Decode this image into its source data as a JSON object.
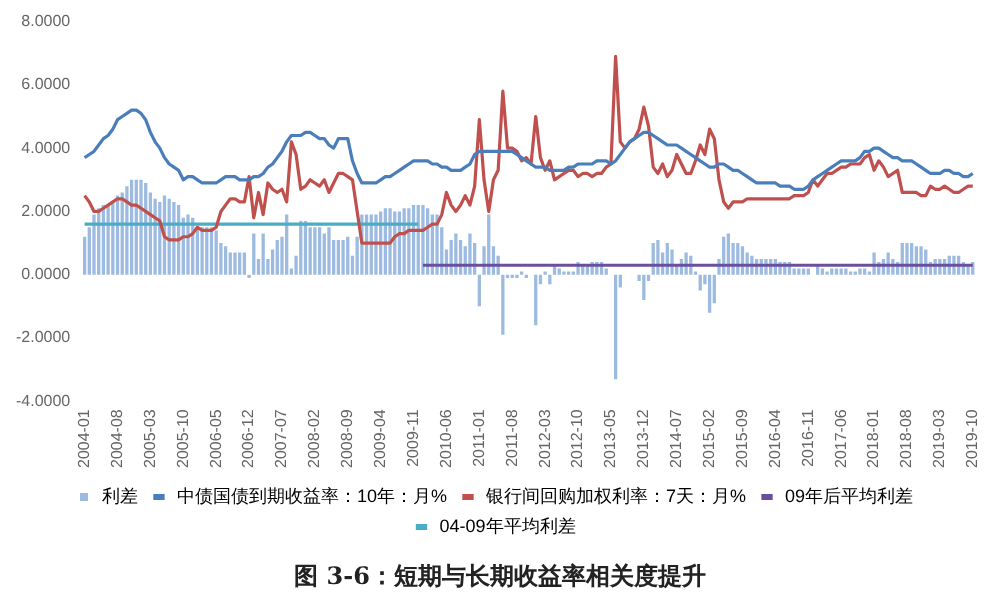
{
  "chart_data": {
    "type": "bar",
    "title": "图 3-6：短期与长期收益率相关度提升",
    "categories": [
      "2004-01",
      null,
      null,
      null,
      null,
      null,
      null,
      "2004-08",
      null,
      null,
      null,
      null,
      null,
      null,
      "2005-03",
      null,
      null,
      null,
      null,
      null,
      null,
      "2005-10",
      null,
      null,
      null,
      null,
      null,
      null,
      "2006-05",
      null,
      null,
      null,
      null,
      null,
      null,
      "2006-12",
      null,
      null,
      null,
      null,
      null,
      null,
      "2007-07",
      null,
      null,
      null,
      null,
      null,
      null,
      "2008-02",
      null,
      null,
      null,
      null,
      null,
      null,
      "2008-09",
      null,
      null,
      null,
      null,
      null,
      null,
      "2009-04",
      null,
      null,
      null,
      null,
      null,
      null,
      "2009-11",
      null,
      null,
      null,
      null,
      null,
      null,
      "2010-06",
      null,
      null,
      null,
      null,
      null,
      null,
      "2011-01",
      null,
      null,
      null,
      null,
      null,
      null,
      "2011-08",
      null,
      null,
      null,
      null,
      null,
      null,
      "2012-03",
      null,
      null,
      null,
      null,
      null,
      null,
      "2012-10",
      null,
      null,
      null,
      null,
      null,
      null,
      "2013-05",
      null,
      null,
      null,
      null,
      null,
      null,
      "2013-12",
      null,
      null,
      null,
      null,
      null,
      null,
      "2014-07",
      null,
      null,
      null,
      null,
      null,
      null,
      "2015-02",
      null,
      null,
      null,
      null,
      null,
      null,
      "2015-09",
      null,
      null,
      null,
      null,
      null,
      null,
      "2016-04",
      null,
      null,
      null,
      null,
      null,
      null,
      "2016-11",
      null,
      null,
      null,
      null,
      null,
      null,
      "2017-06",
      null,
      null,
      null,
      null,
      null,
      null,
      "2018-01",
      null,
      null,
      null,
      null,
      null,
      null,
      "2018-08",
      null,
      null,
      null,
      null,
      null,
      null,
      "2019-03",
      null,
      null,
      null,
      null,
      null,
      null,
      "2019-10"
    ],
    "series": [
      {
        "name": "利差",
        "type": "bar",
        "color": "#9dbbe0",
        "values": [
          1.2,
          1.5,
          1.9,
          2.1,
          2.2,
          2.2,
          2.3,
          2.5,
          2.6,
          2.8,
          3.0,
          3.0,
          3.0,
          2.9,
          2.6,
          2.4,
          2.3,
          2.5,
          2.4,
          2.3,
          2.2,
          1.8,
          1.9,
          1.8,
          1.5,
          1.5,
          1.5,
          1.5,
          1.4,
          1.0,
          0.9,
          0.7,
          0.7,
          0.7,
          0.7,
          -0.1,
          1.3,
          0.5,
          1.3,
          0.5,
          0.8,
          1.1,
          1.2,
          1.9,
          0.2,
          0.6,
          1.7,
          1.7,
          1.5,
          1.5,
          1.5,
          1.3,
          1.5,
          1.1,
          1.1,
          1.1,
          1.2,
          0.6,
          1.2,
          1.9,
          1.9,
          1.9,
          1.9,
          2.0,
          2.1,
          2.1,
          2.0,
          2.0,
          2.1,
          2.1,
          2.2,
          2.2,
          2.2,
          2.1,
          1.9,
          1.9,
          1.5,
          0.8,
          1.1,
          1.3,
          1.1,
          0.9,
          1.3,
          1.0,
          -1.0,
          0.9,
          1.9,
          0.9,
          0.6,
          -1.9,
          -0.1,
          -0.1,
          -0.1,
          0.1,
          -0.1,
          0.0,
          -1.6,
          -0.3,
          0.1,
          -0.3,
          0.3,
          0.2,
          0.1,
          0.1,
          0.1,
          0.4,
          0.3,
          0.3,
          0.4,
          0.4,
          0.4,
          0.2,
          0.0,
          -3.3,
          -0.4,
          0.0,
          0.0,
          0.0,
          -0.2,
          -0.8,
          -0.2,
          1.0,
          1.1,
          0.7,
          1.0,
          0.8,
          0.3,
          0.5,
          0.7,
          0.6,
          0.1,
          -0.5,
          -0.3,
          -1.2,
          -0.9,
          0.5,
          1.2,
          1.3,
          1.0,
          1.0,
          0.9,
          0.7,
          0.6,
          0.5,
          0.5,
          0.5,
          0.5,
          0.5,
          0.4,
          0.4,
          0.4,
          0.2,
          0.2,
          0.2,
          0.2,
          0.0,
          0.3,
          0.2,
          0.1,
          0.2,
          0.2,
          0.2,
          0.2,
          0.1,
          0.1,
          0.2,
          0.2,
          0.1,
          0.7,
          0.4,
          0.5,
          0.7,
          0.5,
          0.4,
          1.0,
          1.0,
          1.0,
          0.9,
          0.9,
          0.8,
          0.4,
          0.5,
          0.5,
          0.5,
          0.6,
          0.6,
          0.6,
          0.4,
          0.3,
          0.4
        ]
      },
      {
        "name": "中债国债到期收益率：10年：月%",
        "type": "line",
        "color": "#4a7ebb",
        "values": [
          3.7,
          3.8,
          3.9,
          4.1,
          4.3,
          4.4,
          4.6,
          4.9,
          5.0,
          5.1,
          5.2,
          5.2,
          5.1,
          4.9,
          4.5,
          4.2,
          4.0,
          3.7,
          3.5,
          3.4,
          3.3,
          3.0,
          3.1,
          3.1,
          3.0,
          2.9,
          2.9,
          2.9,
          2.9,
          3.0,
          3.1,
          3.1,
          3.1,
          3.0,
          3.0,
          3.0,
          3.1,
          3.1,
          3.2,
          3.4,
          3.5,
          3.7,
          3.9,
          4.2,
          4.4,
          4.4,
          4.4,
          4.5,
          4.5,
          4.4,
          4.3,
          4.3,
          4.1,
          4.0,
          4.3,
          4.3,
          4.3,
          3.6,
          3.2,
          2.9,
          2.9,
          2.9,
          2.9,
          3.0,
          3.1,
          3.1,
          3.2,
          3.3,
          3.4,
          3.5,
          3.6,
          3.6,
          3.6,
          3.6,
          3.5,
          3.5,
          3.4,
          3.4,
          3.3,
          3.3,
          3.3,
          3.4,
          3.5,
          3.8,
          3.9,
          3.9,
          3.9,
          3.9,
          3.9,
          3.9,
          3.9,
          3.9,
          3.8,
          3.7,
          3.6,
          3.5,
          3.4,
          3.4,
          3.4,
          3.3,
          3.3,
          3.3,
          3.3,
          3.4,
          3.4,
          3.5,
          3.5,
          3.5,
          3.5,
          3.6,
          3.6,
          3.6,
          3.5,
          3.6,
          3.8,
          4.0,
          4.2,
          4.3,
          4.4,
          4.5,
          4.5,
          4.4,
          4.3,
          4.2,
          4.1,
          4.1,
          4.1,
          4.0,
          3.9,
          3.8,
          3.7,
          3.6,
          3.5,
          3.4,
          3.4,
          3.5,
          3.5,
          3.4,
          3.3,
          3.3,
          3.2,
          3.1,
          3.0,
          2.9,
          2.9,
          2.9,
          2.9,
          2.9,
          2.8,
          2.8,
          2.8,
          2.7,
          2.7,
          2.7,
          2.8,
          3.0,
          3.1,
          3.2,
          3.3,
          3.4,
          3.5,
          3.6,
          3.6,
          3.6,
          3.6,
          3.7,
          3.9,
          3.9,
          4.0,
          4.0,
          3.9,
          3.8,
          3.7,
          3.7,
          3.6,
          3.6,
          3.6,
          3.5,
          3.4,
          3.3,
          3.2,
          3.2,
          3.2,
          3.3,
          3.3,
          3.2,
          3.2,
          3.1,
          3.1,
          3.2
        ]
      },
      {
        "name": "银行间回购加权利率：7天：月%",
        "type": "line",
        "color": "#c0504d",
        "values": [
          2.5,
          2.3,
          2.0,
          2.0,
          2.1,
          2.2,
          2.3,
          2.4,
          2.4,
          2.3,
          2.2,
          2.2,
          2.1,
          2.0,
          1.9,
          1.8,
          1.7,
          1.2,
          1.1,
          1.1,
          1.1,
          1.2,
          1.2,
          1.3,
          1.5,
          1.4,
          1.4,
          1.4,
          1.5,
          2.0,
          2.2,
          2.4,
          2.4,
          2.3,
          2.3,
          3.1,
          1.8,
          2.6,
          1.9,
          2.9,
          2.7,
          2.6,
          2.7,
          2.3,
          4.2,
          3.8,
          2.7,
          2.8,
          3.0,
          2.9,
          2.8,
          3.0,
          2.6,
          2.9,
          3.2,
          3.2,
          3.1,
          3.0,
          2.0,
          1.0,
          1.0,
          1.0,
          1.0,
          1.0,
          1.0,
          1.0,
          1.2,
          1.3,
          1.3,
          1.4,
          1.4,
          1.4,
          1.4,
          1.5,
          1.6,
          1.6,
          1.9,
          2.6,
          2.2,
          2.0,
          2.2,
          2.5,
          2.2,
          2.8,
          4.9,
          3.0,
          2.0,
          3.0,
          3.3,
          5.8,
          4.0,
          4.0,
          3.9,
          3.6,
          3.7,
          3.5,
          5.0,
          3.7,
          3.3,
          3.6,
          3.0,
          3.1,
          3.2,
          3.3,
          3.3,
          3.1,
          3.2,
          3.2,
          3.1,
          3.2,
          3.2,
          3.4,
          3.5,
          6.9,
          4.2,
          4.0,
          4.2,
          4.3,
          4.6,
          5.3,
          4.7,
          3.4,
          3.2,
          3.5,
          3.1,
          3.3,
          3.8,
          3.5,
          3.2,
          3.2,
          3.6,
          4.1,
          3.8,
          4.6,
          4.3,
          3.0,
          2.3,
          2.1,
          2.3,
          2.3,
          2.3,
          2.4,
          2.4,
          2.4,
          2.4,
          2.4,
          2.4,
          2.4,
          2.4,
          2.4,
          2.4,
          2.5,
          2.5,
          2.5,
          2.6,
          3.0,
          2.8,
          3.0,
          3.2,
          3.2,
          3.3,
          3.4,
          3.4,
          3.5,
          3.5,
          3.5,
          3.7,
          3.8,
          3.3,
          3.6,
          3.4,
          3.1,
          3.2,
          3.3,
          2.6,
          2.6,
          2.6,
          2.6,
          2.5,
          2.5,
          2.8,
          2.7,
          2.7,
          2.8,
          2.7,
          2.6,
          2.6,
          2.7,
          2.8,
          2.8
        ]
      },
      {
        "name": "09年后平均利差",
        "type": "line",
        "color": "#6a4f9e",
        "values": [
          null,
          null,
          null,
          null,
          null,
          null,
          null,
          null,
          null,
          null,
          null,
          null,
          null,
          null,
          null,
          null,
          null,
          null,
          null,
          null,
          null,
          null,
          null,
          null,
          null,
          null,
          null,
          null,
          null,
          null,
          null,
          null,
          null,
          null,
          null,
          null,
          null,
          null,
          null,
          null,
          null,
          null,
          null,
          null,
          null,
          null,
          null,
          null,
          null,
          null,
          null,
          null,
          null,
          null,
          null,
          null,
          null,
          null,
          null,
          null,
          null,
          null,
          null,
          null,
          null,
          null,
          null,
          null,
          null,
          null,
          null,
          null,
          0.3,
          0.3,
          0.3,
          0.3,
          0.3,
          0.3,
          0.3,
          0.3,
          0.3,
          0.3,
          0.3,
          0.3,
          0.3,
          0.3,
          0.3,
          0.3,
          0.3,
          0.3,
          0.3,
          0.3,
          0.3,
          0.3,
          0.3,
          0.3,
          0.3,
          0.3,
          0.3,
          0.3,
          0.3,
          0.3,
          0.3,
          0.3,
          0.3,
          0.3,
          0.3,
          0.3,
          0.3,
          0.3,
          0.3,
          0.3,
          0.3,
          0.3,
          0.3,
          0.3,
          0.3,
          0.3,
          0.3,
          0.3,
          0.3,
          0.3,
          0.3,
          0.3,
          0.3,
          0.3,
          0.3,
          0.3,
          0.3,
          0.3,
          0.3,
          0.3,
          0.3,
          0.3,
          0.3,
          0.3,
          0.3,
          0.3,
          0.3,
          0.3,
          0.3,
          0.3,
          0.3,
          0.3,
          0.3,
          0.3,
          0.3,
          0.3,
          0.3,
          0.3,
          0.3,
          0.3,
          0.3,
          0.3,
          0.3,
          0.3,
          0.3,
          0.3,
          0.3,
          0.3,
          0.3,
          0.3,
          0.3,
          0.3,
          0.3,
          0.3,
          0.3,
          0.3,
          0.3,
          0.3,
          0.3,
          0.3,
          0.3,
          0.3,
          0.3,
          0.3,
          0.3,
          0.3,
          0.3,
          0.3,
          0.3,
          0.3,
          0.3,
          0.3,
          0.3,
          0.3,
          0.3,
          0.3,
          0.3,
          0.3
        ]
      },
      {
        "name": "04-09年平均利差",
        "type": "line",
        "color": "#4bacc6",
        "values": [
          1.6,
          1.6,
          1.6,
          1.6,
          1.6,
          1.6,
          1.6,
          1.6,
          1.6,
          1.6,
          1.6,
          1.6,
          1.6,
          1.6,
          1.6,
          1.6,
          1.6,
          1.6,
          1.6,
          1.6,
          1.6,
          1.6,
          1.6,
          1.6,
          1.6,
          1.6,
          1.6,
          1.6,
          1.6,
          1.6,
          1.6,
          1.6,
          1.6,
          1.6,
          1.6,
          1.6,
          1.6,
          1.6,
          1.6,
          1.6,
          1.6,
          1.6,
          1.6,
          1.6,
          1.6,
          1.6,
          1.6,
          1.6,
          1.6,
          1.6,
          1.6,
          1.6,
          1.6,
          1.6,
          1.6,
          1.6,
          1.6,
          1.6,
          1.6,
          1.6,
          1.6,
          1.6,
          1.6,
          1.6,
          1.6,
          1.6,
          1.6,
          1.6,
          1.6,
          1.6,
          1.6,
          1.6,
          null,
          null,
          null,
          null,
          null,
          null,
          null,
          null,
          null,
          null,
          null,
          null,
          null,
          null,
          null,
          null,
          null,
          null,
          null,
          null,
          null,
          null,
          null,
          null,
          null,
          null,
          null,
          null,
          null,
          null,
          null,
          null,
          null,
          null,
          null,
          null,
          null,
          null,
          null,
          null,
          null,
          null,
          null,
          null,
          null,
          null,
          null,
          null,
          null,
          null,
          null,
          null,
          null,
          null,
          null,
          null,
          null,
          null,
          null,
          null,
          null,
          null,
          null,
          null,
          null,
          null,
          null,
          null,
          null,
          null,
          null,
          null,
          null,
          null,
          null,
          null,
          null,
          null,
          null,
          null,
          null,
          null,
          null,
          null,
          null,
          null,
          null,
          null,
          null,
          null,
          null,
          null,
          null,
          null,
          null,
          null,
          null,
          null,
          null,
          null,
          null,
          null,
          null,
          null,
          null,
          null,
          null,
          null,
          null,
          null,
          null,
          null,
          null,
          null,
          null,
          null,
          null,
          null
        ]
      }
    ],
    "ylim": [
      -4,
      8
    ],
    "yticks": [
      {
        "value": -4,
        "label": "-4.0000"
      },
      {
        "value": -2,
        "label": "-2.0000"
      },
      {
        "value": 0,
        "label": "0.0000"
      },
      {
        "value": 2,
        "label": "2.0000"
      },
      {
        "value": 4,
        "label": "4.0000"
      },
      {
        "value": 6,
        "label": "6.0000"
      },
      {
        "value": 8,
        "label": "8.0000"
      }
    ],
    "grid": false,
    "legend": "bottom",
    "marker": "none",
    "line_style": "solid"
  }
}
